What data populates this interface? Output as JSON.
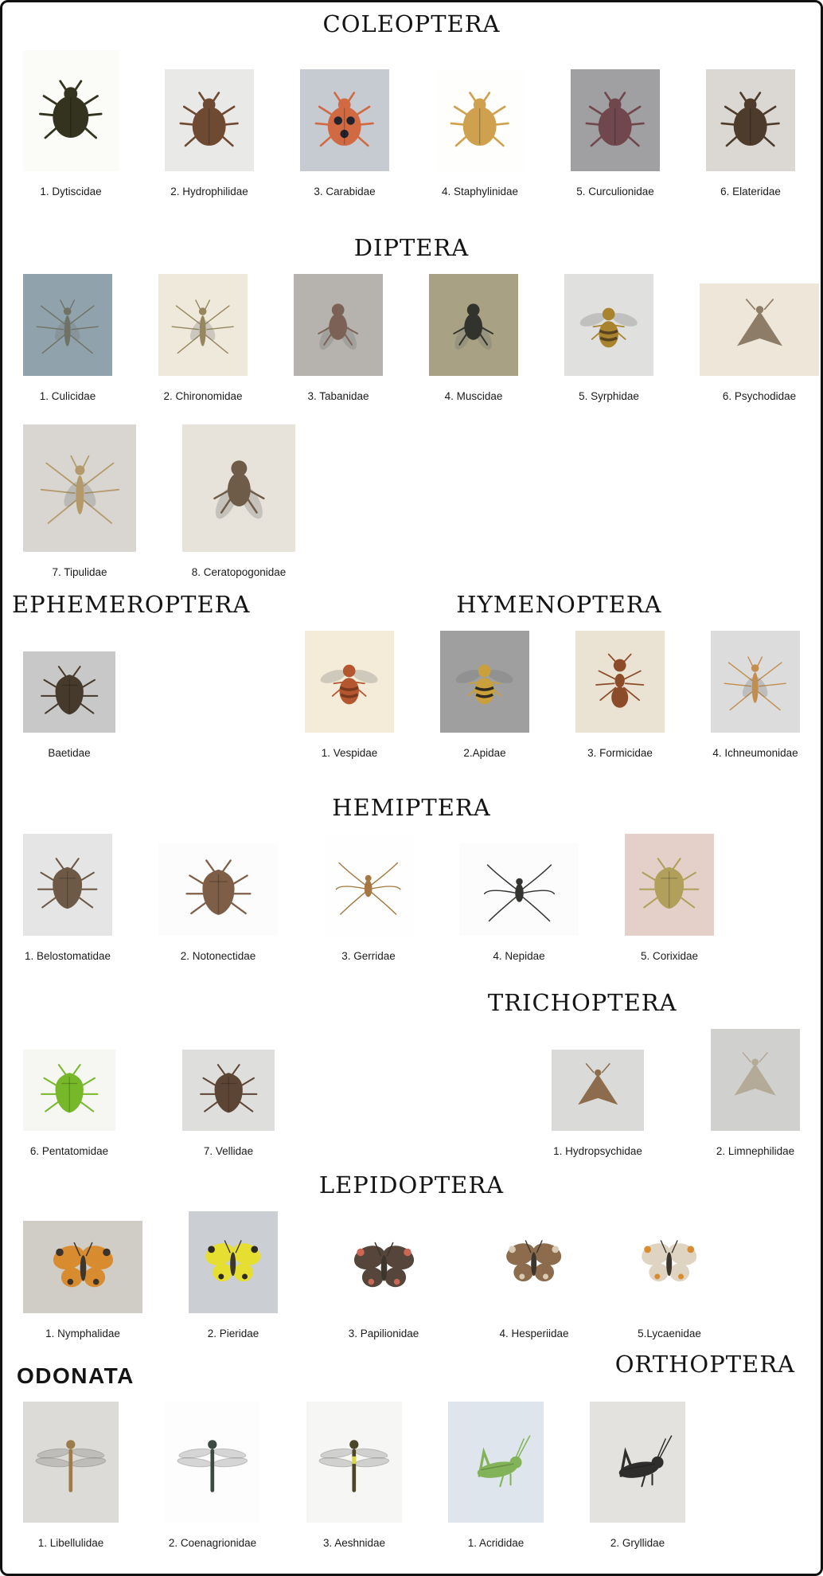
{
  "page": {
    "background": "#ffffff",
    "border_color": "#111111"
  },
  "sections": [
    {
      "id": "coleoptera",
      "titles": [
        {
          "text": "COLEOPTERA",
          "pos": "center",
          "font": "serif"
        }
      ],
      "rows": [
        {
          "justify": "between",
          "gap": "md",
          "groups": [
            [
              {
                "label": "1. Dytiscidae",
                "glyph": "beetle",
                "bg": "#fbfbf8",
                "body": "#33331f",
                "size": "tall"
              },
              {
                "label": "2. Hydrophilidae",
                "glyph": "beetle",
                "bg": "#e9e9e7",
                "body": "#6f4a33",
                "size": "md"
              },
              {
                "label": "3. Carabidae",
                "glyph": "beetle",
                "bg": "#c6cbd2",
                "body": "#d16a42",
                "accent": "#23232e",
                "size": "md"
              },
              {
                "label": "4. Staphylinidae",
                "glyph": "beetle",
                "bg": "#fefefc",
                "body": "#cfa14f",
                "size": "md"
              },
              {
                "label": "5. Curculionidae",
                "glyph": "beetle",
                "bg": "#a0a0a2",
                "body": "#70474d",
                "size": "md"
              },
              {
                "label": "6. Elateridae",
                "glyph": "beetle",
                "bg": "#dbd8d3",
                "body": "#4d3b2c",
                "size": "md"
              }
            ]
          ]
        }
      ]
    },
    {
      "id": "diptera",
      "titles": [
        {
          "text": "DIPTERA",
          "pos": "center",
          "font": "serif"
        }
      ],
      "rows": [
        {
          "justify": "between",
          "gap": "md",
          "groups": [
            [
              {
                "label": "1. Culicidae",
                "glyph": "slender",
                "bg": "#90a2ac",
                "body": "#6f7264",
                "size": "md"
              },
              {
                "label": "2. Chironomidae",
                "glyph": "slender",
                "bg": "#efe9dc",
                "body": "#97875f",
                "size": "md"
              },
              {
                "label": "3. Tabanidae",
                "glyph": "fly",
                "bg": "#b6b3ae",
                "body": "#7c6256",
                "size": "md"
              },
              {
                "label": "4. Muscidae",
                "glyph": "fly",
                "bg": "#a8a183",
                "body": "#33332e",
                "size": "md"
              },
              {
                "label": "5. Syrphidae",
                "glyph": "bee",
                "bg": "#e0e0de",
                "body": "#a8842f",
                "accent": "#5a4420",
                "size": "md"
              },
              {
                "label": "6. Psychodidae",
                "glyph": "moth",
                "bg": "#eee7d9",
                "body": "#8d7c67",
                "size": "wide"
              }
            ]
          ]
        },
        {
          "justify": "start",
          "gap": "md",
          "groups": [
            [
              {
                "label": "7. Tipulidae",
                "glyph": "slender",
                "bg": "#d9d6d1",
                "body": "#b49a6a",
                "size": "lg"
              },
              {
                "label": "8. Ceratopogonidae",
                "glyph": "fly",
                "bg": "#e7e2da",
                "body": "#6e5c49",
                "size": "lg"
              }
            ]
          ]
        }
      ]
    },
    {
      "id": "ephemeroptera-hymenoptera",
      "titles": [
        {
          "text": "EPHEMEROPTERA",
          "pos": "left",
          "font": "serif"
        },
        {
          "text": "HYMENOPTERA",
          "pos": "c69",
          "font": "serif"
        }
      ],
      "rows": [
        {
          "justify": "between",
          "gap": "md",
          "groups": [
            [
              {
                "label": "Baetidae",
                "glyph": "bug",
                "bg": "#c8c8c8",
                "body": "#463a2c",
                "size": "short"
              }
            ],
            [
              {
                "label": "1. Vespidae",
                "glyph": "bee",
                "bg": "#f4ecd9",
                "body": "#b4562f",
                "accent": "#7a3a1e",
                "size": "md"
              },
              {
                "label": "2.Apidae",
                "glyph": "bee",
                "bg": "#9f9f9f",
                "body": "#c9a03b",
                "accent": "#2e2a20",
                "size": "md"
              },
              {
                "label": "3. Formicidae",
                "glyph": "ant",
                "bg": "#eae2d2",
                "body": "#8c4b29",
                "size": "md"
              },
              {
                "label": "4. Ichneumonidae",
                "glyph": "slender",
                "bg": "#dcdcdc",
                "body": "#c28d4d",
                "size": "md"
              }
            ]
          ]
        }
      ]
    },
    {
      "id": "hemiptera",
      "titles": [
        {
          "text": "HEMIPTERA",
          "pos": "center",
          "font": "serif"
        }
      ],
      "rows": [
        {
          "justify": "between",
          "gap": "md",
          "groups": [
            [
              {
                "label": "1. Belostomatidae",
                "glyph": "bug",
                "bg": "#e5e5e5",
                "body": "#6d5946",
                "size": "md"
              },
              {
                "label": "2. Notonectidae",
                "glyph": "bug",
                "bg": "#fcfcfc",
                "body": "#7e5e46",
                "size": "wide"
              },
              {
                "label": "3. Gerridae",
                "glyph": "strider",
                "bg": "#fefefe",
                "body": "#a5783f",
                "size": "md"
              },
              {
                "label": "4. Nepidae",
                "glyph": "strider",
                "bg": "#fcfcfc",
                "body": "#333330",
                "size": "wide"
              },
              {
                "label": "5. Corixidae",
                "glyph": "bug",
                "bg": "#e5d0c9",
                "body": "#b1a05c",
                "size": "md"
              }
            ]
          ]
        }
      ]
    },
    {
      "id": "hemiptera-trichoptera",
      "titles": [
        {
          "text": "TRICHOPTERA",
          "pos": "c72",
          "font": "serif"
        }
      ],
      "rows": [
        {
          "justify": "between",
          "gap": "lg",
          "groups": [
            [
              {
                "label": "6. Pentatomidae",
                "glyph": "bug",
                "bg": "#f6f6f3",
                "body": "#76b82a",
                "size": "short"
              },
              {
                "label": "7. Vellidae",
                "glyph": "bug",
                "bg": "#dededc",
                "body": "#5d4536",
                "size": "short"
              }
            ],
            [
              {
                "label": "1. Hydropsychidae",
                "glyph": "moth",
                "bg": "#dadad8",
                "body": "#8c6c4c",
                "size": "short"
              },
              {
                "label": "2. Limnephilidae",
                "glyph": "moth",
                "bg": "#d0d0ce",
                "body": "#b3ab97",
                "size": "md"
              }
            ]
          ]
        }
      ]
    },
    {
      "id": "lepidoptera",
      "titles": [
        {
          "text": "LEPIDOPTERA",
          "pos": "center",
          "font": "serif"
        }
      ],
      "rows": [
        {
          "justify": "between",
          "gap": "md",
          "groups": [
            [
              {
                "label": "1. Nymphalidae",
                "glyph": "butterfly",
                "bg": "#d0cdc7",
                "body": "#d98c2f",
                "accent": "#3a342c",
                "size": "wide"
              },
              {
                "label": "2. Pieridae",
                "glyph": "butterfly",
                "bg": "#cbcfd4",
                "body": "#e6df32",
                "accent": "#2e2a20",
                "size": "md"
              },
              {
                "label": "3. Papilionidae",
                "glyph": "butterfly",
                "bg": "#ffffff",
                "body": "#55453a",
                "accent": "#cc6655",
                "size": "wide"
              },
              {
                "label": "4. Hesperiidae",
                "glyph": "butterfly",
                "bg": "#ffffff",
                "body": "#8c6c4c",
                "accent": "#d9cbb3",
                "size": "md"
              },
              {
                "label": "5.Lycaenidae",
                "glyph": "butterfly",
                "bg": "#ffffff",
                "body": "#ded4c1",
                "accent": "#d98c2f",
                "size": "md"
              }
            ]
          ]
        }
      ]
    },
    {
      "id": "odonata-orthoptera",
      "titles": [
        {
          "text": "ODONATA",
          "pos": "left-low",
          "font": "sans"
        },
        {
          "text": "ORTHOPTERA",
          "pos": "right",
          "font": "serif"
        }
      ],
      "rows": [
        {
          "justify": "between",
          "gap": "md",
          "groups": [
            [
              {
                "label": "1. Libellulidae",
                "glyph": "dragonfly",
                "bg": "#dddbd7",
                "body": "#9c7c4c",
                "size": "tall"
              },
              {
                "label": "2. Coenagrionidae",
                "glyph": "dragonfly",
                "bg": "#fdfdfd",
                "body": "#3c4a42",
                "size": "tall"
              },
              {
                "label": "3. Aeshnidae",
                "glyph": "dragonfly",
                "bg": "#f6f6f4",
                "body": "#4c4628",
                "accent": "#d9d948",
                "size": "tall"
              },
              {
                "label": "1. Acrididae",
                "glyph": "grasshopper",
                "bg": "#dfe5ec",
                "body": "#82b358",
                "size": "tall"
              },
              {
                "label": "2. Gryllidae",
                "glyph": "grasshopper",
                "bg": "#e4e2de",
                "body": "#302e2c",
                "size": "tall"
              }
            ]
          ]
        }
      ]
    }
  ]
}
